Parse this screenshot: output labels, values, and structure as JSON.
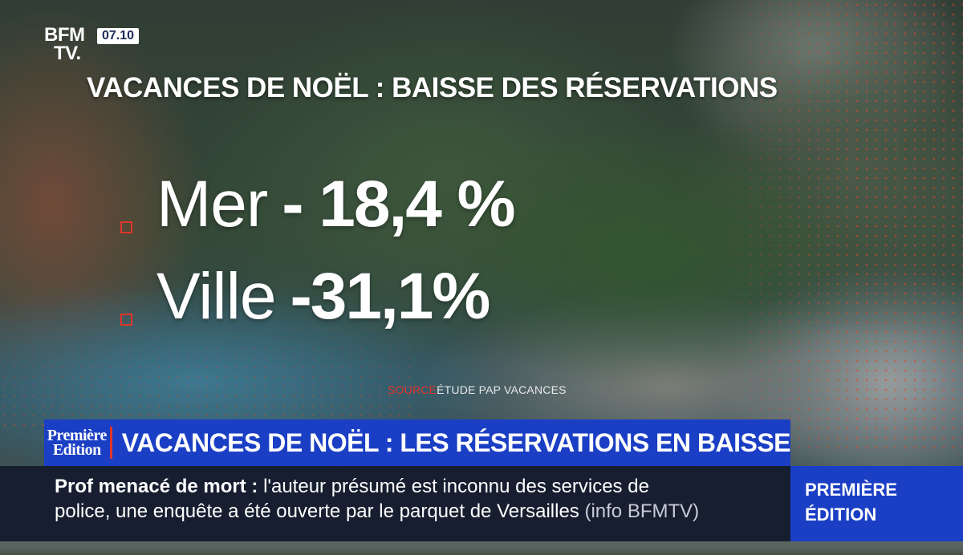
{
  "logo": {
    "line1": "BFM",
    "line2": "TV."
  },
  "clock": "07.10",
  "headline": "VACANCES DE NOËL : BAISSE DES RÉSERVATIONS",
  "stats": [
    {
      "label": "Mer",
      "value": "- 18,4 %"
    },
    {
      "label": "Ville",
      "value": "-31,1%"
    }
  ],
  "source": {
    "prefix": "SOURCE",
    "text": "ÉTUDE PAP VACANCES"
  },
  "banner": {
    "program_line1": "Première",
    "program_line2": "Edition",
    "title": "VACANCES DE NOËL : LES RÉSERVATIONS EN BAISSE"
  },
  "ticker": {
    "topic": "Prof menacé de mort",
    "colon": " :",
    "line1_text": "  l'auteur présumé est inconnu des services de",
    "line2_text": "police, une enquête a été ouverte par le parquet de Versailles",
    "credit": "(info BFMTV)"
  },
  "badge": {
    "line1": "PREMIÈRE",
    "line2": "ÉDITION"
  },
  "colors": {
    "brand_blue": "#1b3fc4",
    "accent_red": "#e2352a",
    "ticker_bg": "#121a2e"
  }
}
